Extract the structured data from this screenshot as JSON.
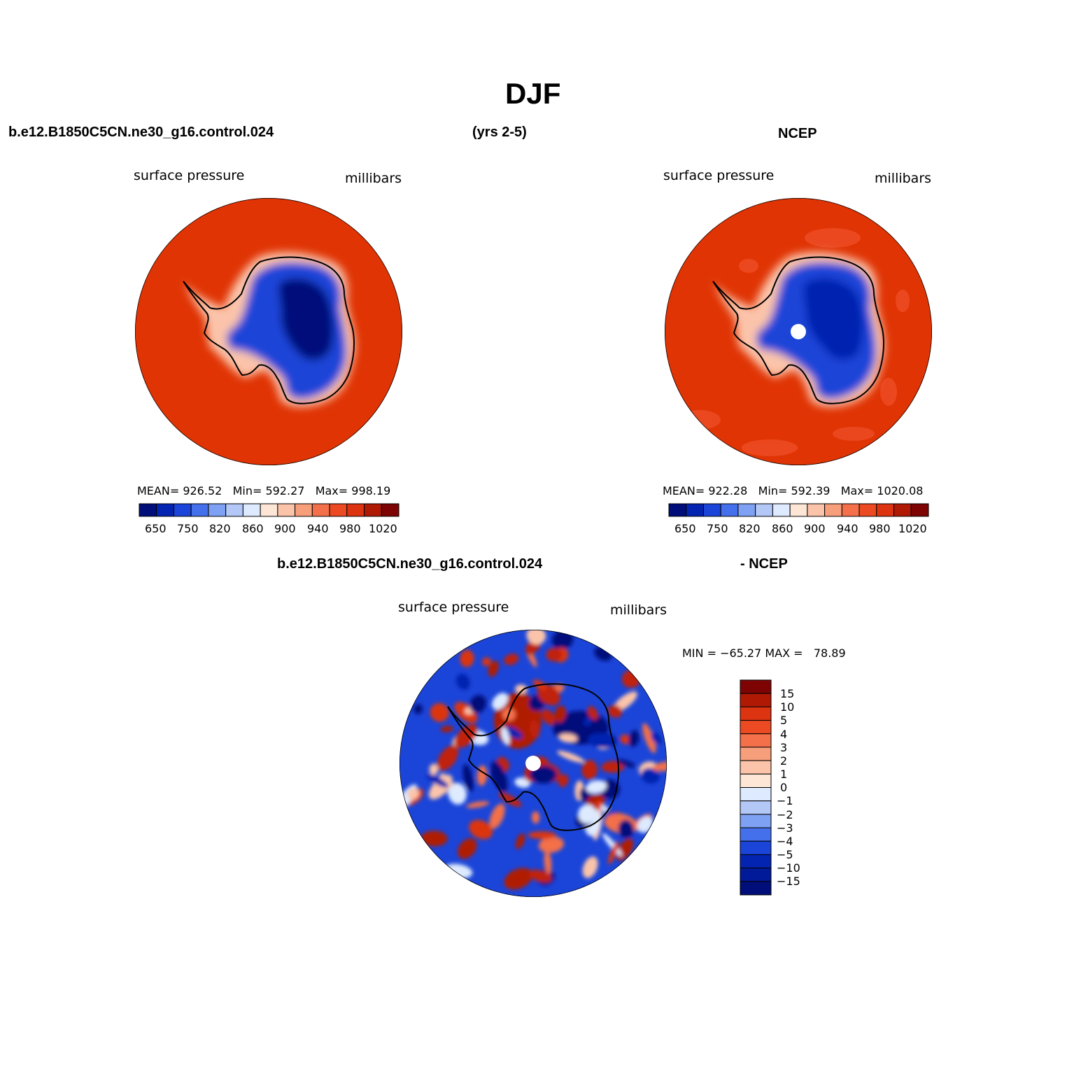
{
  "title": "DJF",
  "header": {
    "case_name": "b.e12.B1850C5CN.ne30_g16.control.024",
    "years": "(yrs 2-5)",
    "obs_name": "NCEP",
    "diff_case": "b.e12.B1850C5CN.ne30_g16.control.024",
    "diff_obs": "- NCEP"
  },
  "panels": {
    "model": {
      "variable": "surface pressure",
      "units": "millibars",
      "stats": "MEAN= 926.52   Min= 592.27   Max= 998.19"
    },
    "obs": {
      "variable": "surface pressure",
      "units": "millibars",
      "stats": "MEAN= 922.28   Min= 592.39   Max= 1020.08"
    },
    "diff": {
      "variable": "surface pressure",
      "units": "millibars",
      "stats": "MIN = −65.27 MAX =   78.89"
    }
  },
  "colorbars": {
    "abs": {
      "colors": [
        "#000e7a",
        "#0324b0",
        "#1b45d8",
        "#4570ec",
        "#7fa1f4",
        "#b4c8f8",
        "#ddeaff",
        "#fde6d6",
        "#fbc4aa",
        "#f79e7a",
        "#f3704a",
        "#ec4a22",
        "#dc3410",
        "#b01a04",
        "#7e0404"
      ],
      "labels": [
        "650",
        "750",
        "820",
        "860",
        "900",
        "940",
        "980",
        "1020"
      ]
    },
    "diff": {
      "colors": [
        "#7e0404",
        "#b01a04",
        "#dc3410",
        "#ec4a22",
        "#f3704a",
        "#f79e7a",
        "#fbc4aa",
        "#fde6d6",
        "#ddeaff",
        "#b4c8f8",
        "#7fa1f4",
        "#4570ec",
        "#1b45d8",
        "#0324b0",
        "#001a9a",
        "#000e7a"
      ],
      "labels": [
        "15",
        "10",
        "5",
        "4",
        "3",
        "2",
        "1",
        "0",
        "−1",
        "−2",
        "−3",
        "−4",
        "−5",
        "−10",
        "−15"
      ]
    }
  },
  "map_colors": {
    "ocean_high": "#e03404",
    "ocean_mid": "#ec4a22",
    "coast_light": "#fde6d6",
    "interior_low": "#0324b0",
    "interior_deep": "#000e7a",
    "diff_pos": "#c02008",
    "diff_neg": "#0a2cc8"
  }
}
